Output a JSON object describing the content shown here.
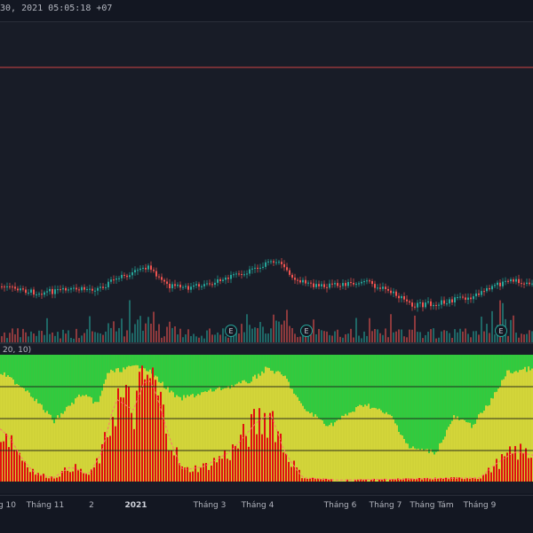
{
  "header": {
    "timestamp": "30, 2021 05:05:18 +07"
  },
  "indicator": {
    "label": "20, 10)"
  },
  "colors": {
    "background": "#131722",
    "pane": "#181c27",
    "up": "#26a69a",
    "down": "#ef5350",
    "green_zone": "#2ecc40",
    "yellow_zone": "#d4d63a",
    "red_bars": "#e01010",
    "level_line": "#ff4d4d"
  },
  "markers": [
    {
      "label": "E"
    },
    {
      "label": "E"
    },
    {
      "label": "E"
    }
  ],
  "xaxis": {
    "labels": [
      {
        "text": "g 10",
        "bold": false
      },
      {
        "text": "Tháng 11",
        "bold": false
      },
      {
        "text": "2",
        "bold": false
      },
      {
        "text": "2021",
        "bold": true
      },
      {
        "text": "Tháng 3",
        "bold": false
      },
      {
        "text": "Tháng 4",
        "bold": false
      },
      {
        "text": "Tháng 6",
        "bold": false
      },
      {
        "text": "Tháng 7",
        "bold": false
      },
      {
        "text": "Tháng Tám",
        "bold": false
      },
      {
        "text": "Tháng 9",
        "bold": false
      }
    ]
  }
}
